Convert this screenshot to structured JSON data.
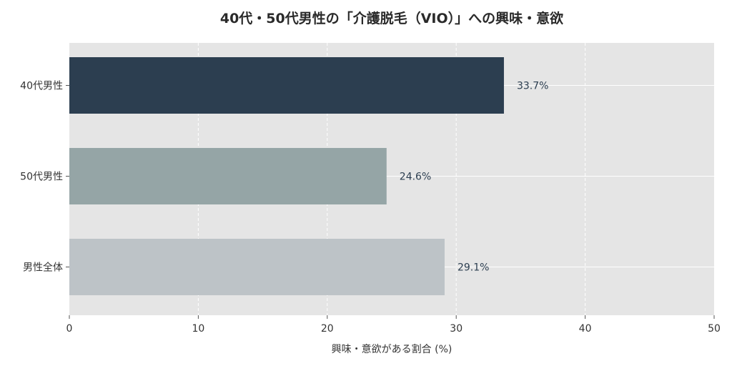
{
  "chart_data": {
    "type": "bar",
    "orientation": "horizontal",
    "title": "40代・50代男性の「介護脱毛（VIO）」への興味・意欲",
    "xlabel": "興味・意欲がある割合 (%)",
    "ylabel": "",
    "categories": [
      "40代男性",
      "50代男性",
      "男性全体"
    ],
    "values": [
      33.7,
      24.6,
      29.1
    ],
    "value_labels": [
      "33.7%",
      "24.6%",
      "29.1%"
    ],
    "colors": [
      "#2c3e50",
      "#95a5a6",
      "#bdc3c7"
    ],
    "xlim": [
      0,
      50
    ],
    "xticks": [
      0,
      10,
      20,
      30,
      40,
      50
    ],
    "grid": true,
    "background": "#e5e5e5"
  }
}
